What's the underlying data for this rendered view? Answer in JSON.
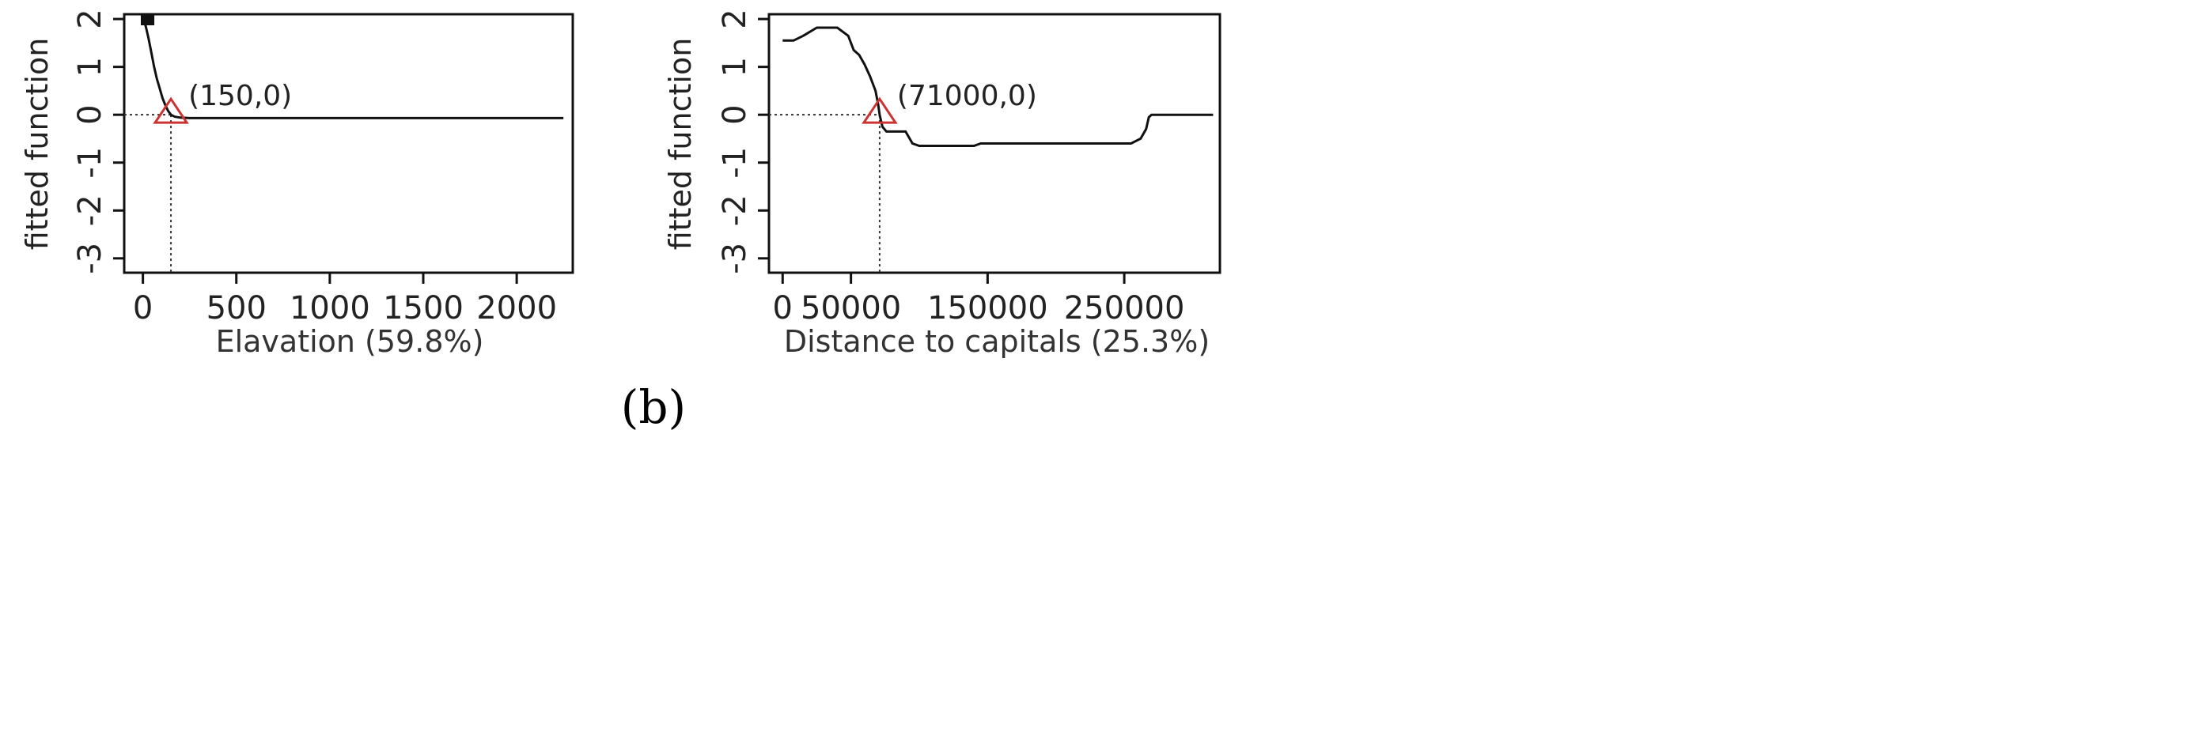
{
  "panel_label": "(b)",
  "colors": {
    "curve": "#111111",
    "marker": "#cc3333",
    "frame": "#111111"
  },
  "chart_data": [
    {
      "type": "line",
      "xlabel": "Elavation  (59.8%)",
      "ylabel": "fitted function",
      "xlim": [
        -100,
        2300
      ],
      "ylim": [
        -3.3,
        2.1
      ],
      "xticks": [
        0,
        500,
        1000,
        1500,
        2000
      ],
      "xtick_labels": [
        "0",
        "500",
        "1000",
        "1500",
        "2000"
      ],
      "yticks": [
        2,
        1,
        0,
        -1,
        -2,
        -3
      ],
      "ytick_labels": [
        "2",
        "1",
        "0",
        "-1",
        "-2",
        "-3"
      ],
      "series": [
        {
          "x": [
            0,
            15,
            30,
            45,
            60,
            75,
            90,
            105,
            120,
            135,
            150,
            170,
            200,
            250,
            400,
            1000,
            2250
          ],
          "y": [
            2.0,
            1.85,
            1.6,
            1.3,
            1.0,
            0.75,
            0.55,
            0.35,
            0.2,
            0.08,
            0.0,
            -0.04,
            -0.06,
            -0.07,
            -0.07,
            -0.07,
            -0.07
          ]
        }
      ],
      "rug": [
        10,
        20,
        30,
        40
      ],
      "threshold": {
        "x": 150,
        "y": 0
      },
      "annotation": "(150,0)"
    },
    {
      "type": "line",
      "xlabel": "Distance to capitals  (25.3%)",
      "ylabel": "fitted function",
      "xlim": [
        -10000,
        320000
      ],
      "ylim": [
        -3.3,
        2.1
      ],
      "xticks": [
        0,
        50000,
        150000,
        250000
      ],
      "xtick_labels": [
        "0",
        "50000",
        "150000",
        "250000"
      ],
      "yticks": [
        2,
        1,
        0,
        -1,
        -2,
        -3
      ],
      "ytick_labels": [
        "2",
        "1",
        "0",
        "-1",
        "-2",
        "-3"
      ],
      "series": [
        {
          "x": [
            0,
            8000,
            15000,
            25000,
            40000,
            48000,
            52000,
            56000,
            60000,
            64000,
            68000,
            70000,
            71000,
            73000,
            76000,
            90000,
            95000,
            100000,
            140000,
            145000,
            255000,
            262000,
            266000,
            268000,
            270000,
            300000,
            315000
          ],
          "y": [
            1.55,
            1.55,
            1.65,
            1.82,
            1.82,
            1.65,
            1.35,
            1.25,
            1.05,
            0.8,
            0.5,
            0.2,
            0.0,
            -0.25,
            -0.35,
            -0.35,
            -0.6,
            -0.65,
            -0.65,
            -0.6,
            -0.6,
            -0.5,
            -0.3,
            -0.05,
            0.0,
            0.0,
            0.0
          ]
        }
      ],
      "rug": [],
      "threshold": {
        "x": 71000,
        "y": 0
      },
      "annotation": "(71000,0)"
    }
  ]
}
